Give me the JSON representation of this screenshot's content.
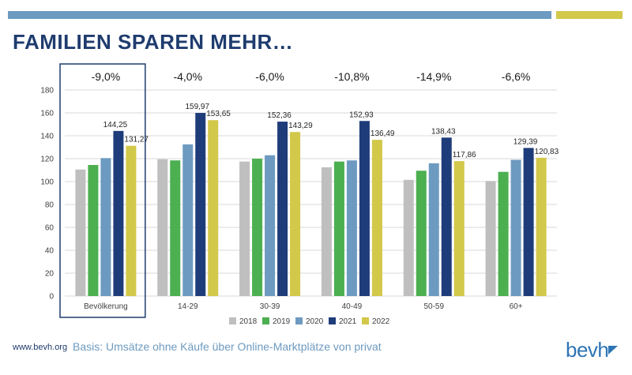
{
  "header": {
    "title": "FAMILIEN SPAREN MEHR…"
  },
  "footer": {
    "url": "www.bevh.org",
    "basis": "Basis: Umsätze ohne Käufe über Online-Marktplätze von privat",
    "logo_text": "bevh"
  },
  "colors": {
    "top_bar_blue": "#6d9ac0",
    "top_bar_gold": "#d2c84a",
    "title": "#1f3c6e"
  },
  "chart_data": {
    "type": "bar",
    "categories": [
      "Bevölkerung",
      "14-29",
      "30-39",
      "40-49",
      "50-59",
      "60+"
    ],
    "changes": [
      "-9,0%",
      "-4,0%",
      "-6,0%",
      "-10,8%",
      "-14,9%",
      "-6,6%"
    ],
    "highlighted_category": "Bevölkerung",
    "ylim": [
      0,
      180
    ],
    "yticks": [
      0,
      20,
      40,
      60,
      80,
      100,
      120,
      140,
      160,
      180
    ],
    "grid": true,
    "legend_position": "bottom",
    "series": [
      {
        "name": "2018",
        "color": "#bfbfbf",
        "values": [
          110.5,
          119.5,
          117.5,
          112.5,
          101.5,
          100.5
        ],
        "labels": [
          "",
          "",
          "",
          "",
          "",
          ""
        ]
      },
      {
        "name": "2019",
        "color": "#4caf50",
        "values": [
          114.5,
          118.5,
          120,
          117.5,
          109.5,
          108.5
        ],
        "labels": [
          "",
          "",
          "",
          "",
          "",
          ""
        ]
      },
      {
        "name": "2020",
        "color": "#6d9ac0",
        "values": [
          120.5,
          132.5,
          123,
          118.5,
          116,
          119
        ],
        "labels": [
          "",
          "",
          "",
          "",
          "",
          ""
        ]
      },
      {
        "name": "2021",
        "color": "#1f3c7a",
        "values": [
          144.25,
          159.97,
          152.36,
          152.93,
          138.43,
          129.39
        ],
        "labels": [
          "144,25",
          "159,97",
          "152,36",
          "152,93",
          "138,43",
          "129,39"
        ]
      },
      {
        "name": "2022",
        "color": "#d2c84a",
        "values": [
          131.27,
          153.65,
          143.29,
          136.49,
          117.86,
          120.83
        ],
        "labels": [
          "131,27",
          "153,65",
          "143,29",
          "136,49",
          "117,86",
          "120,83"
        ]
      }
    ]
  }
}
